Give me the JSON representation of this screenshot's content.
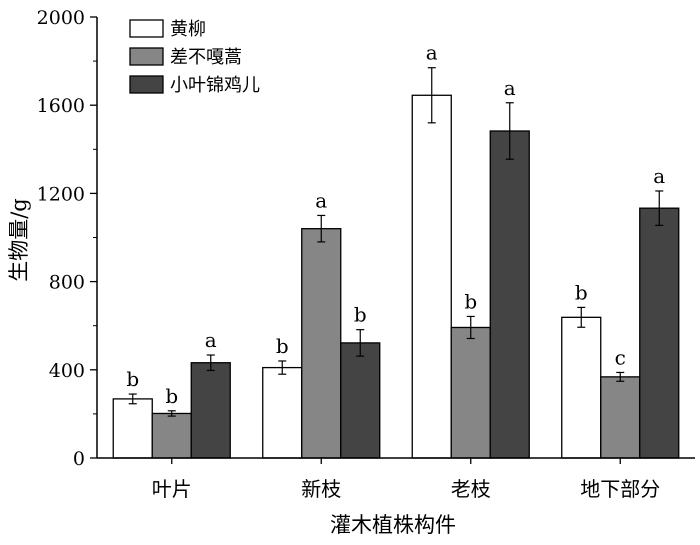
{
  "chart_data": {
    "type": "bar",
    "xlabel": "灌木植株构件",
    "ylabel": "生物量/g",
    "ylim": [
      0,
      2000
    ],
    "yticks": [
      0,
      400,
      800,
      1200,
      1600,
      2000
    ],
    "categories": [
      "叶片",
      "新枝",
      "老枝",
      "地下部分"
    ],
    "legend_position": "top-left",
    "grid": false,
    "series": [
      {
        "name": "黄柳",
        "color": "#ffffff",
        "values": [
          268,
          410,
          1645,
          638
        ],
        "errors": [
          22,
          30,
          125,
          45
        ],
        "significance": [
          "b",
          "b",
          "a",
          "b"
        ]
      },
      {
        "name": "差不嘎蒿",
        "color": "#868686",
        "values": [
          202,
          1040,
          592,
          368
        ],
        "errors": [
          12,
          60,
          50,
          20
        ],
        "significance": [
          "b",
          "a",
          "b",
          "c"
        ]
      },
      {
        "name": "小叶锦鸡儿",
        "color": "#444444",
        "values": [
          432,
          522,
          1483,
          1133
        ],
        "errors": [
          35,
          60,
          128,
          78
        ],
        "significance": [
          "a",
          "b",
          "a",
          "a"
        ]
      }
    ]
  }
}
